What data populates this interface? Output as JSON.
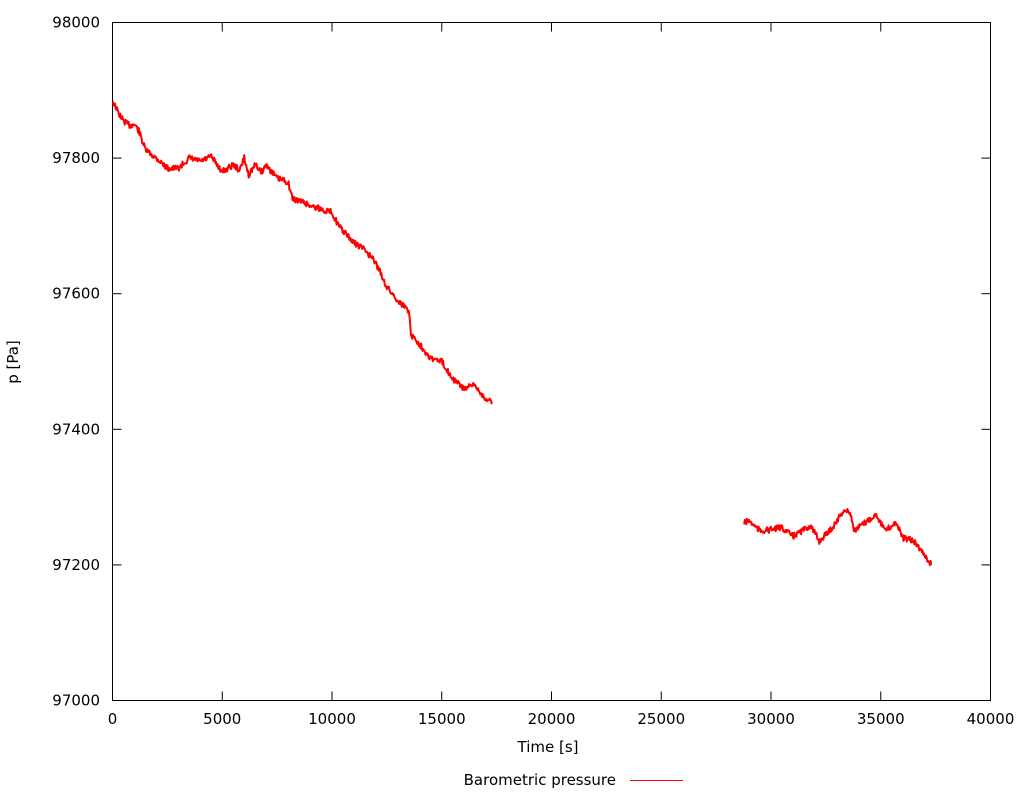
{
  "chart_data": {
    "type": "line",
    "title": "",
    "xlabel": "Time [s]",
    "ylabel": "p [Pa]",
    "xlim": [
      0,
      40000
    ],
    "ylim": [
      97000,
      98000
    ],
    "xticks": [
      0,
      5000,
      10000,
      15000,
      20000,
      25000,
      30000,
      35000,
      40000
    ],
    "yticks": [
      97000,
      97200,
      97400,
      97600,
      97800,
      98000
    ],
    "grid": false,
    "legend_position": "bottom",
    "series": [
      {
        "name": "Barometric pressure",
        "color": "#ff0000",
        "segments": [
          [
            [
              0,
              97885
            ],
            [
              300,
              97865
            ],
            [
              500,
              97855
            ],
            [
              800,
              97848
            ],
            [
              1000,
              97850
            ],
            [
              1200,
              97840
            ],
            [
              1500,
              97812
            ],
            [
              2000,
              97800
            ],
            [
              2500,
              97785
            ],
            [
              3000,
              97785
            ],
            [
              3500,
              97800
            ],
            [
              4000,
              97795
            ],
            [
              4500,
              97802
            ],
            [
              5000,
              97780
            ],
            [
              5500,
              97790
            ],
            [
              5800,
              97782
            ],
            [
              6000,
              97800
            ],
            [
              6200,
              97775
            ],
            [
              6500,
              97790
            ],
            [
              6800,
              97780
            ],
            [
              7000,
              97790
            ],
            [
              7500,
              97770
            ],
            [
              8000,
              97765
            ],
            [
              8200,
              97740
            ],
            [
              8700,
              97735
            ],
            [
              9000,
              97730
            ],
            [
              9500,
              97725
            ],
            [
              10000,
              97720
            ],
            [
              10300,
              97700
            ],
            [
              11000,
              97675
            ],
            [
              11500,
              97665
            ],
            [
              12000,
              97645
            ],
            [
              12500,
              97610
            ],
            [
              13000,
              97590
            ],
            [
              13500,
              97575
            ],
            [
              13600,
              97540
            ],
            [
              14000,
              97525
            ],
            [
              14500,
              97505
            ],
            [
              15000,
              97500
            ],
            [
              15500,
              97475
            ],
            [
              16000,
              97460
            ],
            [
              16500,
              97465
            ],
            [
              17000,
              97445
            ],
            [
              17300,
              97440
            ]
          ],
          [
            [
              28750,
              97262
            ],
            [
              29000,
              97265
            ],
            [
              29500,
              97250
            ],
            [
              30000,
              97252
            ],
            [
              30500,
              97255
            ],
            [
              31000,
              97242
            ],
            [
              31800,
              97258
            ],
            [
              32200,
              97235
            ],
            [
              32800,
              97255
            ],
            [
              33300,
              97280
            ],
            [
              33600,
              97278
            ],
            [
              33800,
              97250
            ],
            [
              34200,
              97260
            ],
            [
              34800,
              97275
            ],
            [
              35200,
              97250
            ],
            [
              35700,
              97263
            ],
            [
              36000,
              97240
            ],
            [
              36500,
              97235
            ],
            [
              37000,
              97215
            ],
            [
              37300,
              97200
            ]
          ]
        ]
      }
    ]
  }
}
